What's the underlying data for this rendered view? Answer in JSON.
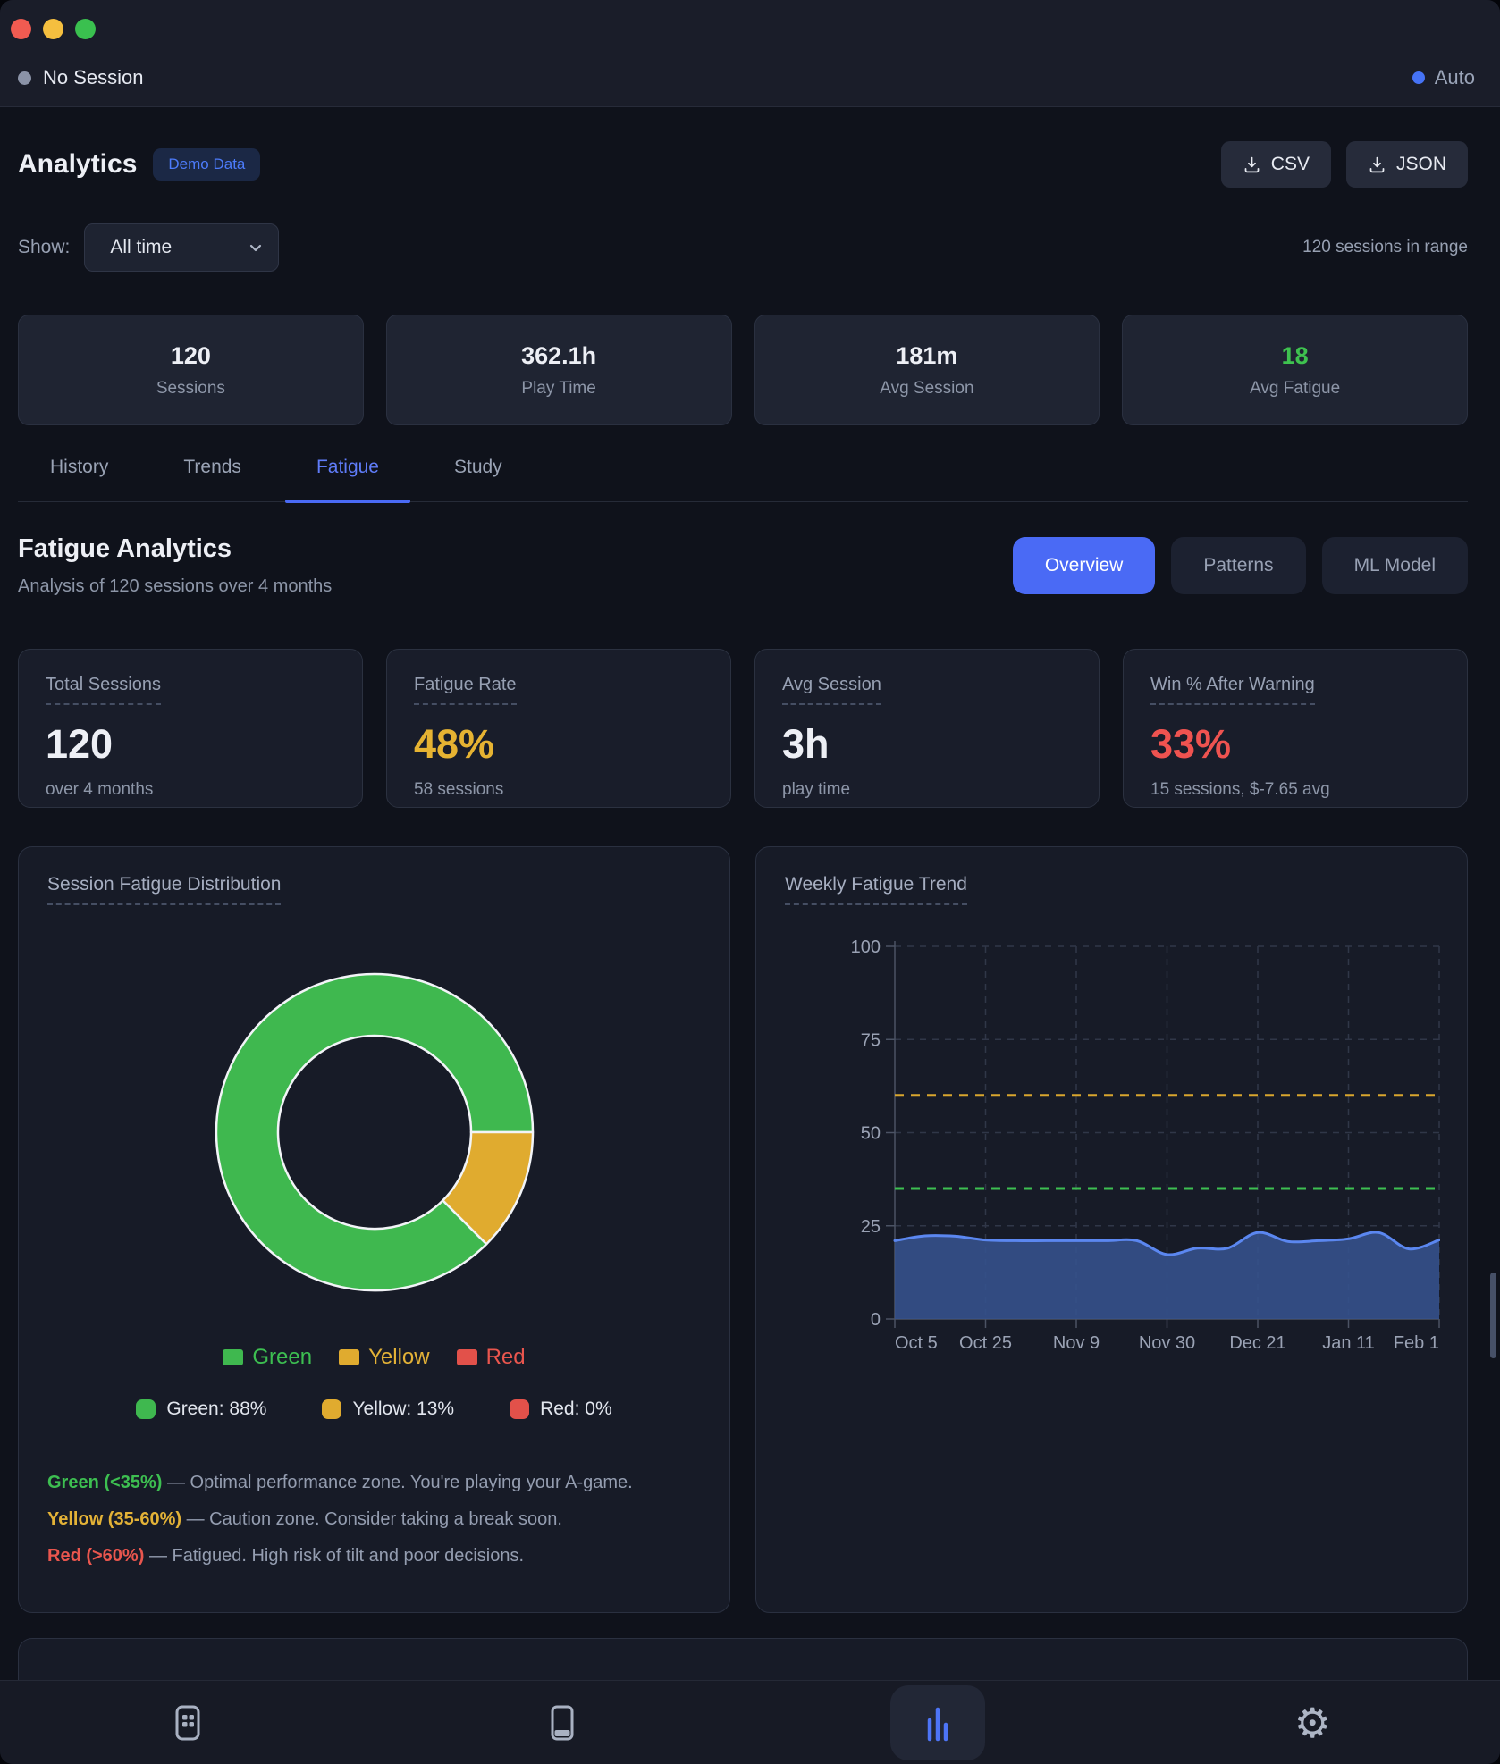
{
  "titlebar": {
    "session_status": "No Session",
    "auto_label": "Auto"
  },
  "header": {
    "title": "Analytics",
    "badge": "Demo Data",
    "export_csv": "CSV",
    "export_json": "JSON"
  },
  "filter": {
    "show_label": "Show:",
    "selected": "All time",
    "range_note": "120 sessions in range"
  },
  "stats": [
    {
      "value": "120",
      "label": "Sessions"
    },
    {
      "value": "362.1h",
      "label": "Play Time"
    },
    {
      "value": "181m",
      "label": "Avg Session"
    },
    {
      "value": "18",
      "label": "Avg Fatigue",
      "accent": "#3ec24f"
    }
  ],
  "tabs": {
    "items": [
      {
        "label": "History",
        "active": false
      },
      {
        "label": "Trends",
        "active": false
      },
      {
        "label": "Fatigue",
        "active": true
      },
      {
        "label": "Study",
        "active": false
      }
    ]
  },
  "section": {
    "title": "Fatigue Analytics",
    "subtitle": "Analysis of 120 sessions over 4 months",
    "views": [
      {
        "label": "Overview",
        "active": true
      },
      {
        "label": "Patterns",
        "active": false
      },
      {
        "label": "ML Model",
        "active": false
      }
    ]
  },
  "metrics": [
    {
      "title": "Total Sessions",
      "value": "120",
      "sub": "over 4 months",
      "color": "#edeff5"
    },
    {
      "title": "Fatigue Rate",
      "value": "48%",
      "sub": "58 sessions",
      "color": "#e6b332"
    },
    {
      "title": "Avg Session",
      "value": "3h",
      "sub": "play time",
      "color": "#edeff5"
    },
    {
      "title": "Win % After Warning",
      "value": "33%",
      "sub": "15 sessions, $-7.65 avg",
      "color": "#ef5350"
    }
  ],
  "donut_card": {
    "title": "Session Fatigue Distribution",
    "legend_detailed": [
      "Green: 88%",
      "Yellow: 13%",
      "Red: 0%"
    ],
    "zones": [
      {
        "lead": "Green (<35%)",
        "rest": "— Optimal performance zone. You're playing your A-game."
      },
      {
        "lead": "Yellow (35-60%)",
        "rest": "— Caution zone. Consider taking a break soon."
      },
      {
        "lead": "Red (>60%)",
        "rest": "— Fatigued. High risk of tilt and poor decisions."
      }
    ]
  },
  "trend_card": {
    "title": "Weekly Fatigue Trend"
  },
  "chart_data": [
    {
      "type": "pie",
      "title": "Session Fatigue Distribution",
      "labels": [
        "Green",
        "Yellow",
        "Red"
      ],
      "values": [
        87.5,
        12.5,
        0
      ],
      "display_percents": [
        "88%",
        "13%",
        "0%"
      ],
      "colors": [
        "#3fb84f",
        "#e0ab2f",
        "#e2514a"
      ],
      "donut": true,
      "legend_position": "bottom"
    },
    {
      "type": "area",
      "title": "Weekly Fatigue Trend",
      "x_ticks": [
        "Oct 5",
        "Oct 25",
        "Nov 9",
        "Nov 30",
        "Dec 21",
        "Jan 11",
        "Feb 1"
      ],
      "values": [
        21,
        22.3,
        22.2,
        21.2,
        21,
        21,
        21,
        21,
        21,
        17.3,
        19,
        19,
        23.2,
        20.8,
        21,
        21.5,
        23.2,
        18.8,
        21.2
      ],
      "ylim": [
        0,
        100
      ],
      "y_ticks": [
        0,
        25,
        50,
        75,
        100
      ],
      "thresholds": [
        {
          "label": "yellow-zone",
          "value": 60,
          "color": "#d9a62e"
        },
        {
          "label": "green-zone",
          "value": 35,
          "color": "#3dbf51"
        }
      ],
      "line_color": "#5b87f0",
      "fill_color": "#35518c",
      "grid": "dashed"
    }
  ],
  "colors": {
    "accent_blue": "#4a6af5",
    "green": "#3ec24f",
    "yellow": "#e6b332",
    "red": "#ef5350"
  },
  "nav": {
    "items": [
      {
        "icon": "grid-icon",
        "active": false
      },
      {
        "icon": "notebook-icon",
        "active": false
      },
      {
        "icon": "bar-chart-icon",
        "active": true
      },
      {
        "icon": "gear-icon",
        "active": false
      }
    ]
  }
}
